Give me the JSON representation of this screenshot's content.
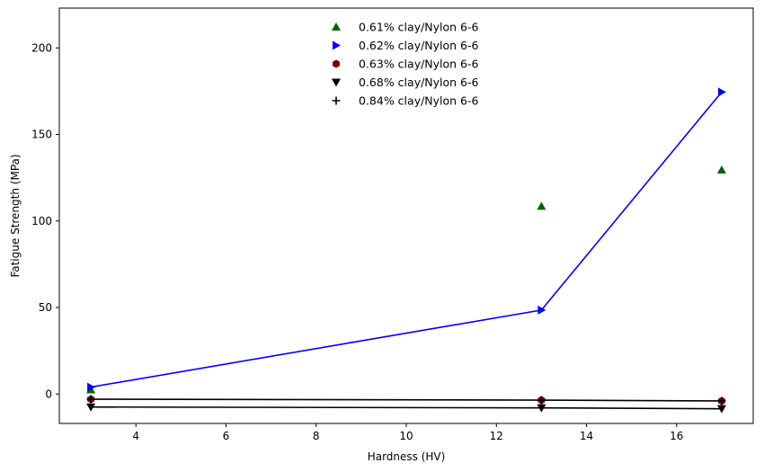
{
  "chart_data": {
    "type": "scatter",
    "title": "",
    "xlabel": "Hardness (HV)",
    "ylabel": "Fatigue Strength (MPa)",
    "xlim": [
      2.3,
      17.7
    ],
    "ylim": [
      -17,
      223
    ],
    "xticks": [
      4,
      6,
      8,
      10,
      12,
      14,
      16
    ],
    "yticks": [
      0,
      50,
      100,
      150,
      200
    ],
    "x": [
      3,
      13,
      17
    ],
    "legend_position": "top-center",
    "grid": false,
    "series": [
      {
        "name": "0.61% clay/Nylon 6-6",
        "marker": "triangle-up",
        "color": "#006400",
        "values": [
          2.5,
          108.5,
          129.5
        ],
        "line": false
      },
      {
        "name": "0.62% clay/Nylon 6-6",
        "marker": "triangle-right",
        "color": "#0000ff",
        "values": [
          4,
          48.5,
          174.5
        ],
        "line": true
      },
      {
        "name": "0.63% clay/Nylon 6-6",
        "marker": "hexagon",
        "color": "#800000",
        "values": [
          -3,
          -3.5,
          -4
        ],
        "line": true
      },
      {
        "name": "0.68% clay/Nylon 6-6",
        "marker": "triangle-down",
        "color": "#000000",
        "values": [
          -7.5,
          -8,
          -8.5
        ],
        "line": true
      },
      {
        "name": "0.84% clay/Nylon 6-6",
        "marker": "plus",
        "color": "#000000",
        "values": [
          -3,
          -3.5,
          -4
        ],
        "line": false
      }
    ]
  }
}
